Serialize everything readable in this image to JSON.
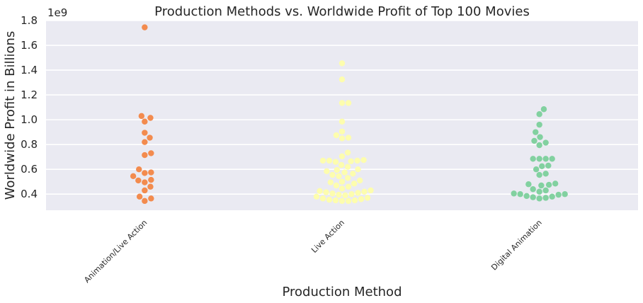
{
  "chart_data": {
    "type": "scatter",
    "title": "Production Methods vs. Worldwide Profit of Top 100 Movies",
    "xlabel": "Production Method",
    "ylabel": "Worldwide Profit in Billions",
    "y_offset_label": "1e9",
    "ylim": [
      0.27,
      1.8
    ],
    "yticks": [
      0.4,
      0.6,
      0.8,
      1.0,
      1.2,
      1.4,
      1.6,
      1.8
    ],
    "ytick_labels": [
      "0.4",
      "0.6",
      "0.8",
      "1.0",
      "1.2",
      "1.4",
      "1.6",
      "1.8"
    ],
    "grid": true,
    "categories": [
      "Animation/Live Action",
      "Live Action",
      "Digital Animation"
    ],
    "colors": [
      "#f38b4e",
      "#fdfdae",
      "#82d1a0"
    ],
    "background": "#eaeaf2",
    "series": [
      {
        "values": [
          1.745,
          1.03,
          1.015,
          0.985,
          0.895,
          0.855,
          0.82,
          0.73,
          0.715,
          0.6,
          0.575,
          0.57,
          0.545,
          0.515,
          0.51,
          0.495,
          0.46,
          0.43,
          0.38,
          0.365,
          0.345
        ]
      },
      {
        "values": [
          1.455,
          1.325,
          1.135,
          1.135,
          0.985,
          0.905,
          0.875,
          0.855,
          0.85,
          0.735,
          0.705,
          0.675,
          0.67,
          0.67,
          0.67,
          0.665,
          0.66,
          0.635,
          0.62,
          0.6,
          0.595,
          0.585,
          0.575,
          0.565,
          0.555,
          0.545,
          0.53,
          0.51,
          0.5,
          0.495,
          0.485,
          0.47,
          0.46,
          0.445,
          0.43,
          0.425,
          0.42,
          0.415,
          0.41,
          0.405,
          0.4,
          0.395,
          0.39,
          0.38,
          0.37,
          0.365,
          0.36,
          0.355,
          0.35,
          0.35,
          0.345,
          0.345
        ]
      },
      {
        "values": [
          1.085,
          1.045,
          0.96,
          0.9,
          0.86,
          0.83,
          0.815,
          0.795,
          0.685,
          0.685,
          0.685,
          0.685,
          0.63,
          0.625,
          0.6,
          0.565,
          0.555,
          0.485,
          0.48,
          0.475,
          0.47,
          0.44,
          0.43,
          0.42,
          0.405,
          0.4,
          0.4,
          0.395,
          0.385,
          0.38,
          0.375,
          0.37,
          0.365
        ]
      }
    ]
  }
}
